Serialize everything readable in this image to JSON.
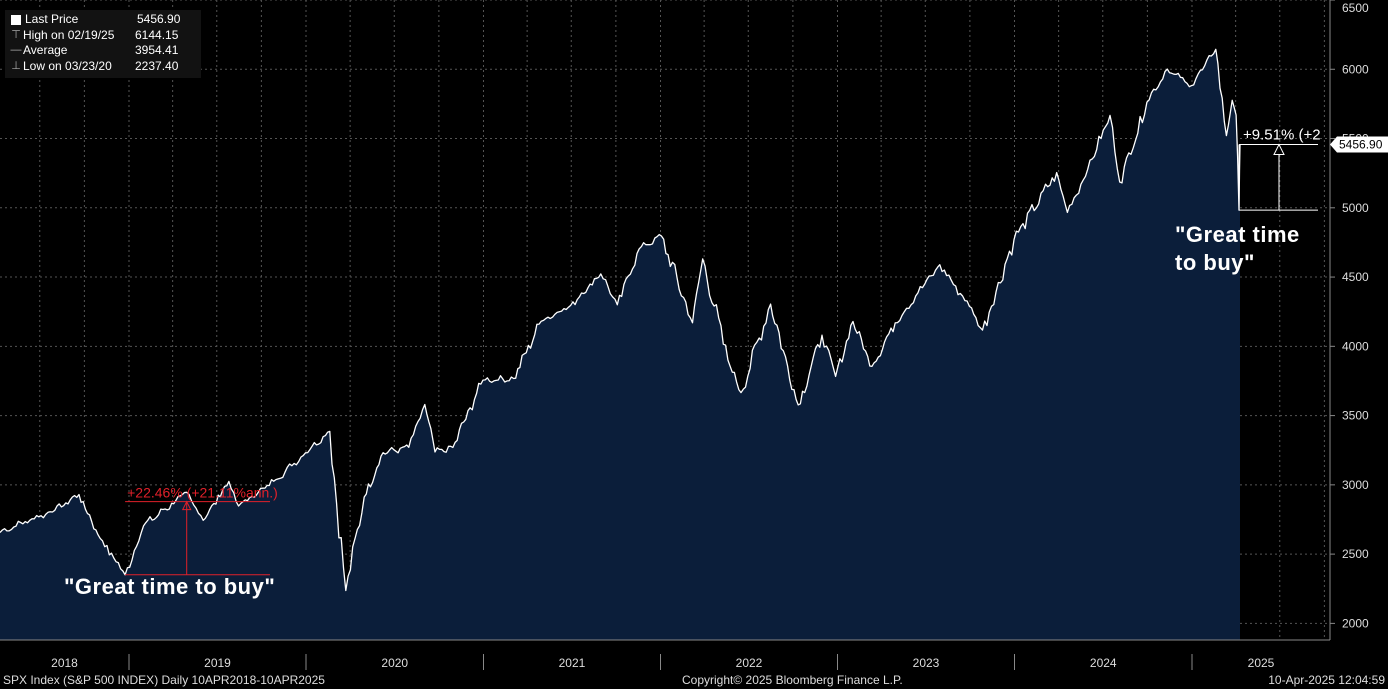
{
  "legend": {
    "items": [
      {
        "icon": "square-icon",
        "label": "Last Price",
        "value": "5456.90"
      },
      {
        "icon": "high-marker-icon",
        "label": "High on 02/19/25",
        "value": "6144.15"
      },
      {
        "icon": "average-line-icon",
        "label": "Average",
        "value": "3954.41"
      },
      {
        "icon": "low-marker-icon",
        "label": "Low on 03/23/20",
        "value": "2237.40"
      }
    ]
  },
  "annotations": {
    "left": "\"Great time to buy\"",
    "right_line1": "\"Great time",
    "right_line2": "to buy\"",
    "left_measure": "+22.46% (+21.11%ann.)",
    "right_measure": "+9.51% (+2",
    "last_price_tag": "5456.90"
  },
  "footer": {
    "left": "SPX Index (S&P 500 INDEX)  Daily 10APR2018-10APR2025",
    "center": "Copyright© 2025 Bloomberg Finance L.P.",
    "right": "10-Apr-2025 12:04:59"
  },
  "colors": {
    "background": "#000000",
    "area": "#0b1e3a",
    "line": "#ffffff",
    "measure_left": "#e0202a",
    "measure_right": "#ffffff"
  },
  "chart_data": {
    "type": "area",
    "title": "",
    "series": [
      {
        "name": "SPX Index (S&P 500 INDEX)",
        "x": [
          "2018-04-10",
          "2018-06-01",
          "2018-08-01",
          "2018-09-20",
          "2018-10-29",
          "2018-12-24",
          "2019-01-31",
          "2019-04-30",
          "2019-06-03",
          "2019-07-26",
          "2019-08-15",
          "2019-10-31",
          "2019-12-31",
          "2020-02-19",
          "2020-03-23",
          "2020-04-30",
          "2020-06-08",
          "2020-07-31",
          "2020-09-02",
          "2020-09-23",
          "2020-10-30",
          "2020-12-31",
          "2021-03-04",
          "2021-04-30",
          "2021-06-30",
          "2021-08-31",
          "2021-10-04",
          "2021-11-18",
          "2022-01-03",
          "2022-03-08",
          "2022-03-29",
          "2022-05-20",
          "2022-06-16",
          "2022-08-16",
          "2022-10-12",
          "2022-11-30",
          "2022-12-28",
          "2023-02-02",
          "2023-03-13",
          "2023-04-30",
          "2023-06-30",
          "2023-07-31",
          "2023-09-30",
          "2023-10-27",
          "2023-12-31",
          "2024-03-28",
          "2024-04-19",
          "2024-05-31",
          "2024-07-16",
          "2024-08-05",
          "2024-09-30",
          "2024-11-11",
          "2024-12-31",
          "2025-02-19",
          "2025-03-13",
          "2025-03-25",
          "2025-04-02",
          "2025-04-08",
          "2025-04-10"
        ],
        "values": [
          2656,
          2735,
          2816,
          2930,
          2640,
          2351,
          2704,
          2946,
          2744,
          3025,
          2847,
          3038,
          3231,
          3386,
          2237,
          2912,
          3232,
          3271,
          3580,
          3237,
          3270,
          3756,
          3768,
          4181,
          4297,
          4523,
          4300,
          4704,
          4796,
          4170,
          4631,
          3901,
          3666,
          4305,
          3577,
          4080,
          3783,
          4179,
          3855,
          4169,
          4450,
          4589,
          4288,
          4117,
          4770,
          5254,
          4967,
          5278,
          5667,
          5186,
          5762,
          6001,
          5882,
          6144,
          5521,
          5776,
          5670,
          4983,
          5456.9
        ]
      }
    ],
    "y_axis": {
      "ticks": [
        2000,
        2500,
        3000,
        3500,
        4000,
        4500,
        5000,
        5500,
        6000,
        6500
      ],
      "ylim": [
        1880,
        6500
      ],
      "position": "right"
    },
    "x_axis": {
      "labels": [
        "2018",
        "2019",
        "2020",
        "2021",
        "2022",
        "2023",
        "2024",
        "2025"
      ],
      "xlim": [
        "2018-04-10",
        "2025-04-10"
      ]
    },
    "grid": true,
    "legend_position": "top-left",
    "stats": {
      "last": 5456.9,
      "high": 6144.15,
      "high_date": "2025-02-19",
      "average": 3954.41,
      "low": 2237.4,
      "low_date": "2020-03-23"
    },
    "measures": [
      {
        "from": {
          "x": "2018-12-24",
          "y": 2351
        },
        "to": {
          "x": "2019-04-30",
          "y": 2879
        },
        "label": "+22.46% (+21.11%ann.)"
      },
      {
        "from": {
          "x": "2025-04-08",
          "y": 4983
        },
        "to": {
          "x": "2025-04-10",
          "y": 5456.9
        },
        "label": "+9.51% (+2"
      }
    ]
  }
}
